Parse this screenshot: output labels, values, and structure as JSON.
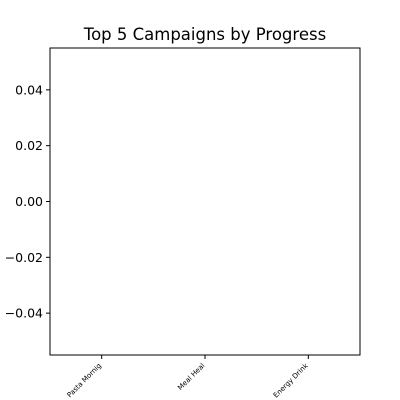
{
  "chart_data": {
    "type": "bar",
    "title": "Top 5 Campaigns by Progress",
    "xlabel": "",
    "ylabel": "",
    "categories": [
      "Pasta Mornig",
      "Meal Heal",
      "Energy Drink"
    ],
    "values": [
      0,
      0,
      0
    ],
    "ylim": [
      -0.055,
      0.055
    ],
    "yticks": [
      0.04,
      0.02,
      0.0,
      -0.02,
      -0.04
    ],
    "ytick_labels": [
      "0.04",
      "0.02",
      "0.00",
      "−0.02",
      "−0.04"
    ],
    "grid": false,
    "legend": "none",
    "colors": {
      "axis": "#000000",
      "background": "#ffffff"
    }
  }
}
